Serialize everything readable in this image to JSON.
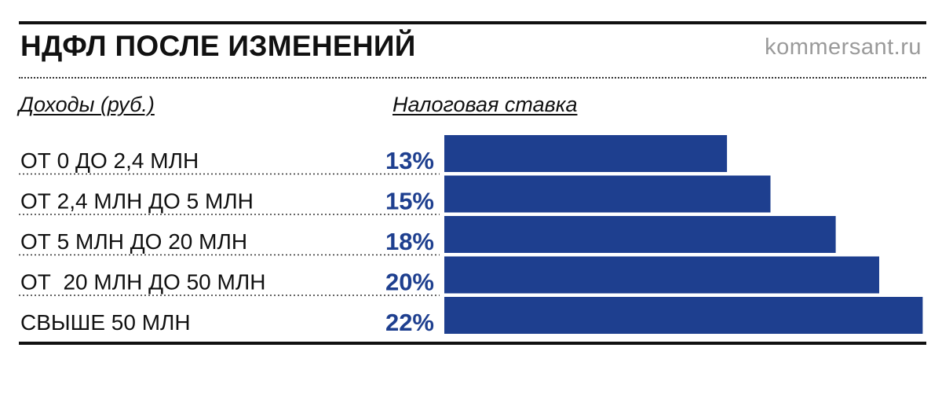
{
  "header": {
    "title": "НДФЛ ПОСЛЕ ИЗМЕНЕНИЙ",
    "source": "kommersant.ru"
  },
  "columns": {
    "income": "Доходы (руб.)",
    "rate": "Налоговая ставка"
  },
  "colors": {
    "bar": "#1e3f8f",
    "value_text": "#1e3f8f",
    "source_text": "#9a9a9a"
  },
  "chart_data": {
    "type": "bar",
    "orientation": "horizontal",
    "categories": [
      "ОТ 0 ДО 2,4 МЛН",
      "ОТ 2,4 МЛН ДО 5 МЛН",
      "ОТ 5 МЛН ДО 20 МЛН",
      "ОТ  20 МЛН ДО 50 МЛН",
      "СВЫШЕ 50 МЛН"
    ],
    "values": [
      13,
      15,
      18,
      20,
      22
    ],
    "value_labels": [
      "13%",
      "15%",
      "18%",
      "20%",
      "22%"
    ],
    "unit": "%",
    "title": "НДФЛ ПОСЛЕ ИЗМЕНЕНИЙ",
    "xlabel": "Налоговая ставка",
    "ylabel": "Доходы (руб.)",
    "xlim": [
      0,
      22
    ],
    "grid": false,
    "legend": "none"
  }
}
